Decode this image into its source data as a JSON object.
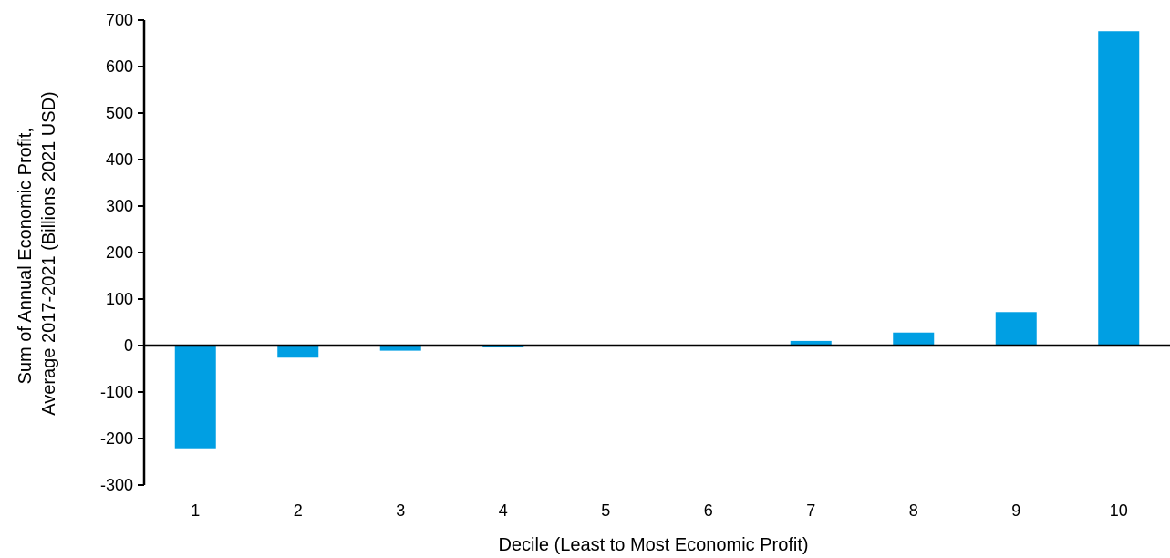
{
  "chart_data": {
    "type": "bar",
    "title": "",
    "xlabel": "Decile (Least to Most Economic Profit)",
    "ylabel_lines": [
      "Sum of Annual Economic Profit,",
      "Average 2017-2021 (Billions 2021 USD)"
    ],
    "categories": [
      "1",
      "2",
      "3",
      "4",
      "5",
      "6",
      "7",
      "8",
      "9",
      "10"
    ],
    "values": [
      -221,
      -26,
      -11,
      -4,
      -1,
      1,
      10,
      28,
      72,
      676
    ],
    "ylim": [
      -300,
      700
    ],
    "yticks": [
      -300,
      -200,
      -100,
      0,
      100,
      200,
      300,
      400,
      500,
      600,
      700
    ],
    "ytick_labels": [
      "-300",
      "-200",
      "-100",
      "0",
      "100",
      "200",
      "300",
      "400",
      "500",
      "600",
      "700"
    ],
    "grid": false,
    "legend": "none",
    "bar_color": "#009FE3",
    "axis_color": "#000000"
  }
}
